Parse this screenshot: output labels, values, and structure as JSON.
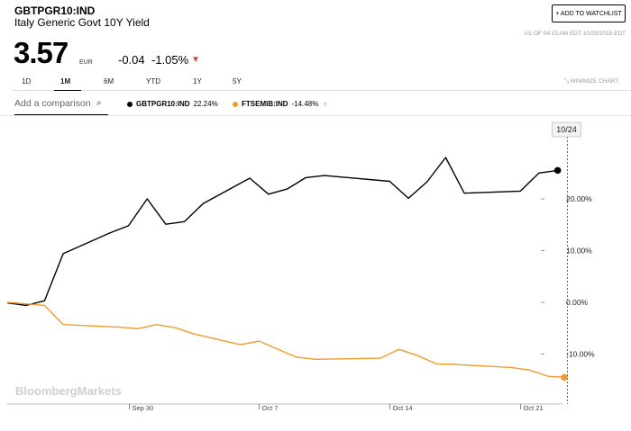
{
  "header": {
    "ticker": "GBTPGR10:IND",
    "name": "Italy Generic Govt 10Y Yield",
    "watchlist_label": "+ ADD TO WATCHLIST",
    "asof": "AS OF 04:15 AM EDT 10/25/2018 EDT",
    "price": "3.57",
    "currency": "EUR",
    "change": "-0.04",
    "change_pct": "-1.05%",
    "arrow": "▼"
  },
  "ranges": {
    "items": [
      "1D",
      "1M",
      "6M",
      "YTD",
      "1Y",
      "5Y"
    ],
    "active": "1M",
    "minimize_label": "MINIMIZE CHART"
  },
  "compare": {
    "placeholder": "Add a comparison",
    "search_icon": "⌕"
  },
  "legend": [
    {
      "name": "GBTPGR10:IND",
      "value": "22.24%",
      "color": "#000000",
      "close": ""
    },
    {
      "name": "FTSEMIB:IND",
      "value": "-14.48%",
      "color": "#f29a2e",
      "close": "×"
    }
  ],
  "watermark": "BloombergMarkets",
  "chart_data": {
    "type": "line",
    "y_unit": "percent change",
    "ylim": [
      -20,
      35
    ],
    "yticks": [
      "20.00%",
      "10.00%",
      "0.00%",
      "-10.00%"
    ],
    "ytick_values": [
      20,
      10,
      0,
      -10
    ],
    "xticks": [
      "Sep 30",
      "Oct 7",
      "Oct 14",
      "Oct 21"
    ],
    "xtick_dates": [
      "2018-09-30",
      "2018-10-07",
      "2018-10-14",
      "2018-10-21"
    ],
    "crosshair_label": "10/24",
    "crosshair_date": "2018-10-24",
    "series": [
      {
        "name": "GBTPGR10:IND",
        "color": "#000000",
        "points": [
          [
            "2018-09-24T00:00",
            -0.1
          ],
          [
            "2018-09-25T00:00",
            -0.6
          ],
          [
            "2018-09-26T00:00",
            0.3
          ],
          [
            "2018-09-27T00:00",
            9.4
          ],
          [
            "2018-09-28T12:00",
            11.8
          ],
          [
            "2018-09-29T12:00",
            13.4
          ],
          [
            "2018-09-30T12:00",
            14.8
          ],
          [
            "2018-10-01T12:00",
            20.0
          ],
          [
            "2018-10-02T12:00",
            15.1
          ],
          [
            "2018-10-03T12:00",
            15.6
          ],
          [
            "2018-10-04T12:00",
            19.1
          ],
          [
            "2018-10-07T00:00",
            24.0
          ],
          [
            "2018-10-08T00:00",
            20.9
          ],
          [
            "2018-10-09T00:00",
            21.9
          ],
          [
            "2018-10-10T00:00",
            24.1
          ],
          [
            "2018-10-11T00:00",
            24.5
          ],
          [
            "2018-10-14T12:00",
            23.4
          ],
          [
            "2018-10-15T12:00",
            20.1
          ],
          [
            "2018-10-16T12:00",
            23.3
          ],
          [
            "2018-10-17T12:00",
            28.0
          ],
          [
            "2018-10-18T12:00",
            21.1
          ],
          [
            "2018-10-21T12:00",
            21.5
          ],
          [
            "2018-10-22T12:00",
            25.0
          ],
          [
            "2018-10-23T12:00",
            25.5
          ]
        ],
        "end_value": 22.24
      },
      {
        "name": "FTSEMIB:IND",
        "color": "#f29a2e",
        "points": [
          [
            "2018-09-24T00:00",
            0.0
          ],
          [
            "2018-09-26T00:00",
            -0.6
          ],
          [
            "2018-09-27T00:00",
            -4.3
          ],
          [
            "2018-09-30T00:00",
            -4.8
          ],
          [
            "2018-10-01T00:00",
            -5.1
          ],
          [
            "2018-10-02T00:00",
            -4.3
          ],
          [
            "2018-10-03T00:00",
            -4.9
          ],
          [
            "2018-10-04T00:00",
            -6.1
          ],
          [
            "2018-10-06T12:00",
            -8.2
          ],
          [
            "2018-10-07T12:00",
            -7.5
          ],
          [
            "2018-10-09T12:00",
            -10.6
          ],
          [
            "2018-10-10T12:00",
            -11.0
          ],
          [
            "2018-10-14T00:00",
            -10.8
          ],
          [
            "2018-10-15T00:00",
            -9.1
          ],
          [
            "2018-10-16T00:00",
            -10.3
          ],
          [
            "2018-10-17T00:00",
            -11.9
          ],
          [
            "2018-10-18T00:00",
            -12.0
          ],
          [
            "2018-10-21T00:00",
            -12.6
          ],
          [
            "2018-10-22T00:00",
            -13.1
          ],
          [
            "2018-10-23T00:00",
            -14.3
          ],
          [
            "2018-10-24T00:00",
            -14.5
          ]
        ],
        "end_value": -14.48
      }
    ]
  }
}
